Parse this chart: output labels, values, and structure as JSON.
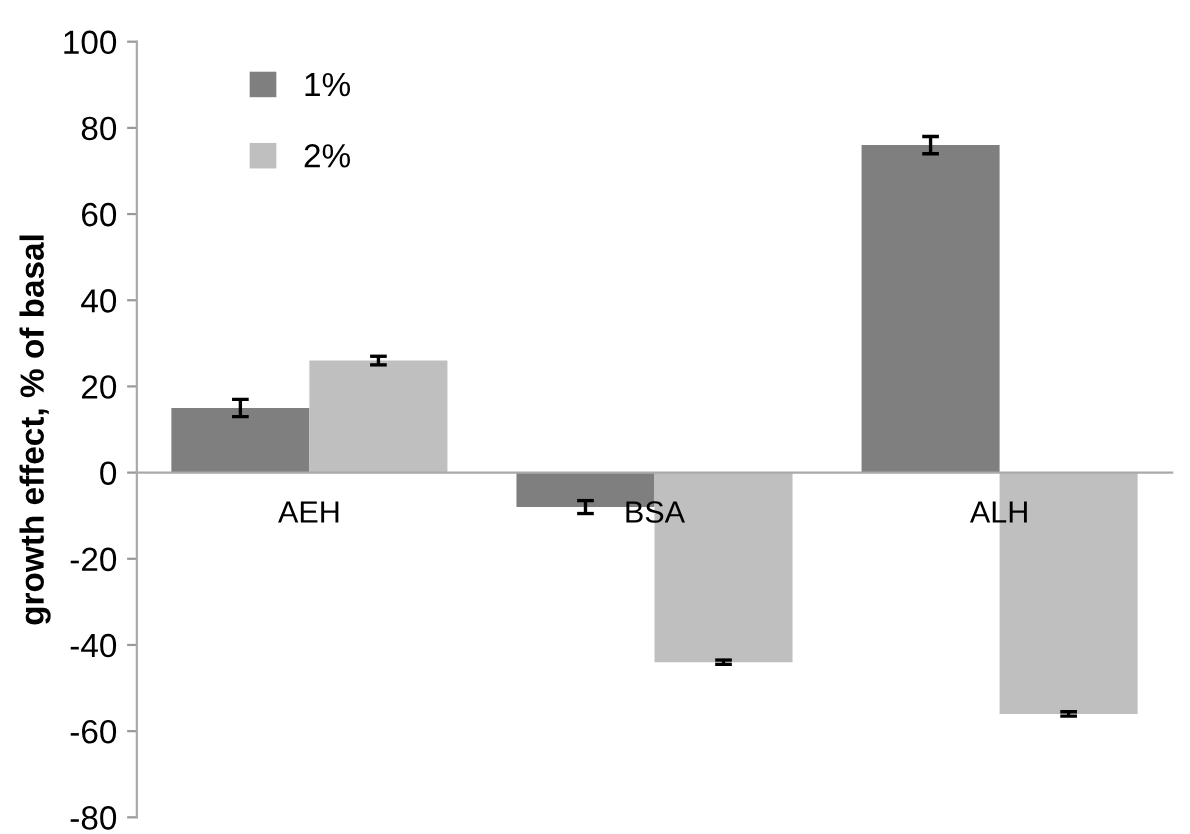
{
  "chart_data": {
    "type": "bar",
    "ylabel": "growth effect, % of basal",
    "categories": [
      "AEH",
      "BSA",
      "ALH"
    ],
    "series": [
      {
        "name": "1%",
        "color": "#7f7f7f",
        "values": [
          15,
          -8,
          76
        ],
        "errors": [
          2,
          1.5,
          2
        ]
      },
      {
        "name": "2%",
        "color": "#bfbfbf",
        "values": [
          26,
          -44,
          -56
        ],
        "errors": [
          1,
          0.5,
          0.5
        ]
      }
    ],
    "ylim": [
      -80,
      100
    ],
    "yticks": [
      -80,
      -60,
      -40,
      -20,
      0,
      20,
      40,
      60,
      80,
      100
    ],
    "grid": false,
    "legend": "top left"
  }
}
